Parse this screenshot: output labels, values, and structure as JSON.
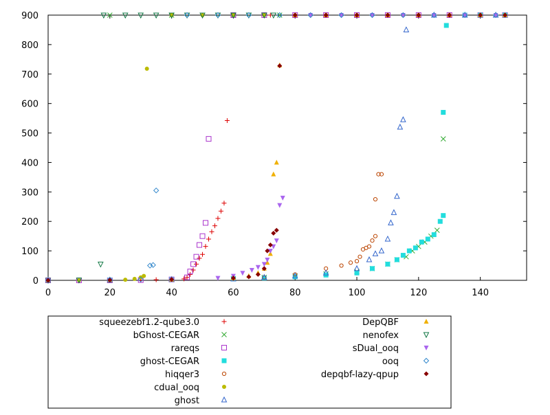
{
  "chart_data": {
    "type": "scatter",
    "title": "",
    "xlabel": "",
    "ylabel": "",
    "xlim": [
      0,
      155
    ],
    "ylim": [
      0,
      900
    ],
    "x_ticks": [
      "0",
      "20",
      "40",
      "60",
      "80",
      "100",
      "120",
      "140"
    ],
    "y_ticks": [
      "0",
      "100",
      "200",
      "300",
      "400",
      "500",
      "600",
      "700",
      "800",
      "900"
    ],
    "legend_position": "bottom",
    "series": [
      {
        "name": "squeezebf1.2-qube3.0",
        "color": "#dd0000",
        "marker": "plus",
        "points": [
          [
            0,
            0
          ],
          [
            10,
            0
          ],
          [
            20,
            0
          ],
          [
            30,
            1
          ],
          [
            35,
            2
          ],
          [
            40,
            3
          ],
          [
            44,
            5
          ],
          [
            45,
            10
          ],
          [
            46,
            20
          ],
          [
            47,
            35
          ],
          [
            48,
            55
          ],
          [
            49,
            75
          ],
          [
            50,
            88
          ],
          [
            51,
            115
          ],
          [
            52,
            140
          ],
          [
            53,
            165
          ],
          [
            54,
            185
          ],
          [
            55,
            210
          ],
          [
            56,
            235
          ],
          [
            57,
            262
          ],
          [
            58,
            542
          ],
          [
            72,
            900
          ],
          [
            80,
            900
          ],
          [
            90,
            900
          ],
          [
            100,
            900
          ],
          [
            110,
            900
          ],
          [
            120,
            900
          ],
          [
            130,
            900
          ],
          [
            140,
            900
          ],
          [
            148,
            900
          ]
        ]
      },
      {
        "name": "bGhost-CEGAR",
        "color": "#33aa33",
        "marker": "x",
        "points": [
          [
            0,
            0
          ],
          [
            20,
            1
          ],
          [
            40,
            3
          ],
          [
            60,
            6
          ],
          [
            70,
            10
          ],
          [
            80,
            15
          ],
          [
            90,
            22
          ],
          [
            100,
            30
          ],
          [
            105,
            40
          ],
          [
            110,
            55
          ],
          [
            113,
            70
          ],
          [
            116,
            80
          ],
          [
            118,
            100
          ],
          [
            120,
            115
          ],
          [
            122,
            130
          ],
          [
            124,
            150
          ],
          [
            126,
            170
          ],
          [
            128,
            480
          ],
          [
            20,
            900
          ],
          [
            40,
            900
          ],
          [
            60,
            900
          ],
          [
            75,
            900
          ]
        ]
      },
      {
        "name": "rareqs",
        "color": "#aa33cc",
        "marker": "square-open",
        "points": [
          [
            0,
            0
          ],
          [
            10,
            0
          ],
          [
            20,
            0
          ],
          [
            30,
            1
          ],
          [
            40,
            3
          ],
          [
            45,
            10
          ],
          [
            46,
            30
          ],
          [
            47,
            55
          ],
          [
            48,
            80
          ],
          [
            49,
            120
          ],
          [
            50,
            150
          ],
          [
            51,
            195
          ],
          [
            52,
            480
          ],
          [
            60,
            900
          ],
          [
            70,
            900
          ],
          [
            80,
            900
          ],
          [
            90,
            900
          ],
          [
            100,
            900
          ],
          [
            110,
            900
          ],
          [
            120,
            900
          ],
          [
            130,
            900
          ],
          [
            140,
            900
          ],
          [
            148,
            900
          ]
        ]
      },
      {
        "name": "ghost-CEGAR",
        "color": "#22dddd",
        "marker": "square",
        "points": [
          [
            0,
            0
          ],
          [
            20,
            1
          ],
          [
            40,
            3
          ],
          [
            60,
            5
          ],
          [
            70,
            8
          ],
          [
            80,
            12
          ],
          [
            90,
            18
          ],
          [
            100,
            25
          ],
          [
            105,
            40
          ],
          [
            110,
            55
          ],
          [
            113,
            70
          ],
          [
            115,
            85
          ],
          [
            117,
            100
          ],
          [
            119,
            110
          ],
          [
            121,
            130
          ],
          [
            123,
            140
          ],
          [
            125,
            155
          ],
          [
            127,
            200
          ],
          [
            128,
            220
          ],
          [
            128,
            570
          ],
          [
            129,
            865
          ],
          [
            135,
            900
          ],
          [
            140,
            900
          ],
          [
            148,
            900
          ]
        ]
      },
      {
        "name": "hiqqer3",
        "color": "#bb4400",
        "marker": "circle-open",
        "points": [
          [
            0,
            0
          ],
          [
            20,
            1
          ],
          [
            40,
            3
          ],
          [
            60,
            6
          ],
          [
            70,
            10
          ],
          [
            80,
            20
          ],
          [
            90,
            40
          ],
          [
            95,
            50
          ],
          [
            98,
            60
          ],
          [
            100,
            65
          ],
          [
            101,
            80
          ],
          [
            102,
            105
          ],
          [
            103,
            110
          ],
          [
            104,
            115
          ],
          [
            105,
            135
          ],
          [
            106,
            150
          ],
          [
            106,
            275
          ],
          [
            107,
            360
          ],
          [
            108,
            360
          ],
          [
            115,
            900
          ],
          [
            125,
            900
          ],
          [
            135,
            900
          ],
          [
            145,
            900
          ]
        ]
      },
      {
        "name": "cdual_ooq",
        "color": "#bbbb00",
        "marker": "circle",
        "points": [
          [
            0,
            0
          ],
          [
            10,
            0
          ],
          [
            20,
            1
          ],
          [
            25,
            2
          ],
          [
            28,
            5
          ],
          [
            30,
            10
          ],
          [
            31,
            15
          ],
          [
            32,
            718
          ],
          [
            40,
            900
          ],
          [
            50,
            900
          ],
          [
            60,
            900
          ],
          [
            70,
            900
          ],
          [
            80,
            900
          ],
          [
            90,
            900
          ],
          [
            100,
            900
          ],
          [
            110,
            900
          ],
          [
            120,
            900
          ],
          [
            130,
            900
          ],
          [
            140,
            900
          ],
          [
            148,
            900
          ]
        ]
      },
      {
        "name": "ghost",
        "color": "#3366cc",
        "marker": "triangle-up-open",
        "points": [
          [
            0,
            0
          ],
          [
            20,
            1
          ],
          [
            40,
            3
          ],
          [
            60,
            5
          ],
          [
            70,
            10
          ],
          [
            80,
            15
          ],
          [
            90,
            25
          ],
          [
            100,
            40
          ],
          [
            104,
            70
          ],
          [
            106,
            90
          ],
          [
            108,
            100
          ],
          [
            110,
            140
          ],
          [
            111,
            195
          ],
          [
            112,
            230
          ],
          [
            113,
            285
          ],
          [
            114,
            520
          ],
          [
            115,
            545
          ],
          [
            116,
            850
          ],
          [
            125,
            900
          ],
          [
            135,
            900
          ],
          [
            145,
            900
          ]
        ]
      },
      {
        "name": "DepQBF",
        "color": "#f0b000",
        "marker": "triangle-up",
        "points": [
          [
            0,
            0
          ],
          [
            20,
            1
          ],
          [
            40,
            3
          ],
          [
            60,
            8
          ],
          [
            65,
            15
          ],
          [
            68,
            25
          ],
          [
            70,
            40
          ],
          [
            71,
            60
          ],
          [
            72,
            90
          ],
          [
            73,
            360
          ],
          [
            74,
            400
          ],
          [
            75,
            730
          ],
          [
            80,
            900
          ],
          [
            90,
            900
          ],
          [
            100,
            900
          ],
          [
            110,
            900
          ],
          [
            120,
            900
          ],
          [
            130,
            900
          ],
          [
            140,
            900
          ],
          [
            148,
            900
          ]
        ]
      },
      {
        "name": "nenofex",
        "color": "#117744",
        "marker": "triangle-down-open",
        "points": [
          [
            0,
            0
          ],
          [
            10,
            1
          ],
          [
            17,
            55
          ],
          [
            18,
            900
          ],
          [
            25,
            900
          ],
          [
            30,
            900
          ],
          [
            35,
            900
          ],
          [
            40,
            900
          ],
          [
            45,
            900
          ],
          [
            50,
            900
          ],
          [
            55,
            900
          ],
          [
            60,
            900
          ],
          [
            65,
            900
          ],
          [
            70,
            900
          ],
          [
            73,
            900
          ]
        ]
      },
      {
        "name": "sDual_ooq",
        "color": "#aa66ee",
        "marker": "triangle-down",
        "points": [
          [
            0,
            0
          ],
          [
            20,
            1
          ],
          [
            40,
            3
          ],
          [
            55,
            8
          ],
          [
            60,
            15
          ],
          [
            63,
            25
          ],
          [
            66,
            35
          ],
          [
            68,
            45
          ],
          [
            70,
            55
          ],
          [
            71,
            70
          ],
          [
            72,
            100
          ],
          [
            73,
            115
          ],
          [
            74,
            135
          ],
          [
            75,
            255
          ],
          [
            76,
            280
          ],
          [
            85,
            900
          ],
          [
            95,
            900
          ],
          [
            105,
            900
          ],
          [
            115,
            900
          ],
          [
            125,
            900
          ],
          [
            135,
            900
          ],
          [
            145,
            900
          ]
        ]
      },
      {
        "name": "ooq",
        "color": "#3388cc",
        "marker": "diamond-open",
        "points": [
          [
            0,
            0
          ],
          [
            20,
            1
          ],
          [
            30,
            3
          ],
          [
            33,
            50
          ],
          [
            34,
            52
          ],
          [
            35,
            305
          ],
          [
            45,
            900
          ],
          [
            55,
            900
          ],
          [
            65,
            900
          ],
          [
            75,
            900
          ],
          [
            85,
            900
          ],
          [
            95,
            900
          ],
          [
            105,
            900
          ],
          [
            115,
            900
          ],
          [
            125,
            900
          ],
          [
            135,
            900
          ],
          [
            145,
            900
          ]
        ]
      },
      {
        "name": "depqbf-lazy-qpup",
        "color": "#880000",
        "marker": "diamond",
        "points": [
          [
            0,
            0
          ],
          [
            20,
            1
          ],
          [
            40,
            3
          ],
          [
            60,
            8
          ],
          [
            65,
            12
          ],
          [
            68,
            20
          ],
          [
            70,
            40
          ],
          [
            71,
            100
          ],
          [
            72,
            120
          ],
          [
            73,
            160
          ],
          [
            74,
            170
          ],
          [
            75,
            728
          ],
          [
            80,
            900
          ],
          [
            90,
            900
          ],
          [
            100,
            900
          ],
          [
            110,
            900
          ],
          [
            120,
            900
          ],
          [
            130,
            900
          ],
          [
            140,
            900
          ],
          [
            148,
            900
          ]
        ]
      }
    ]
  }
}
